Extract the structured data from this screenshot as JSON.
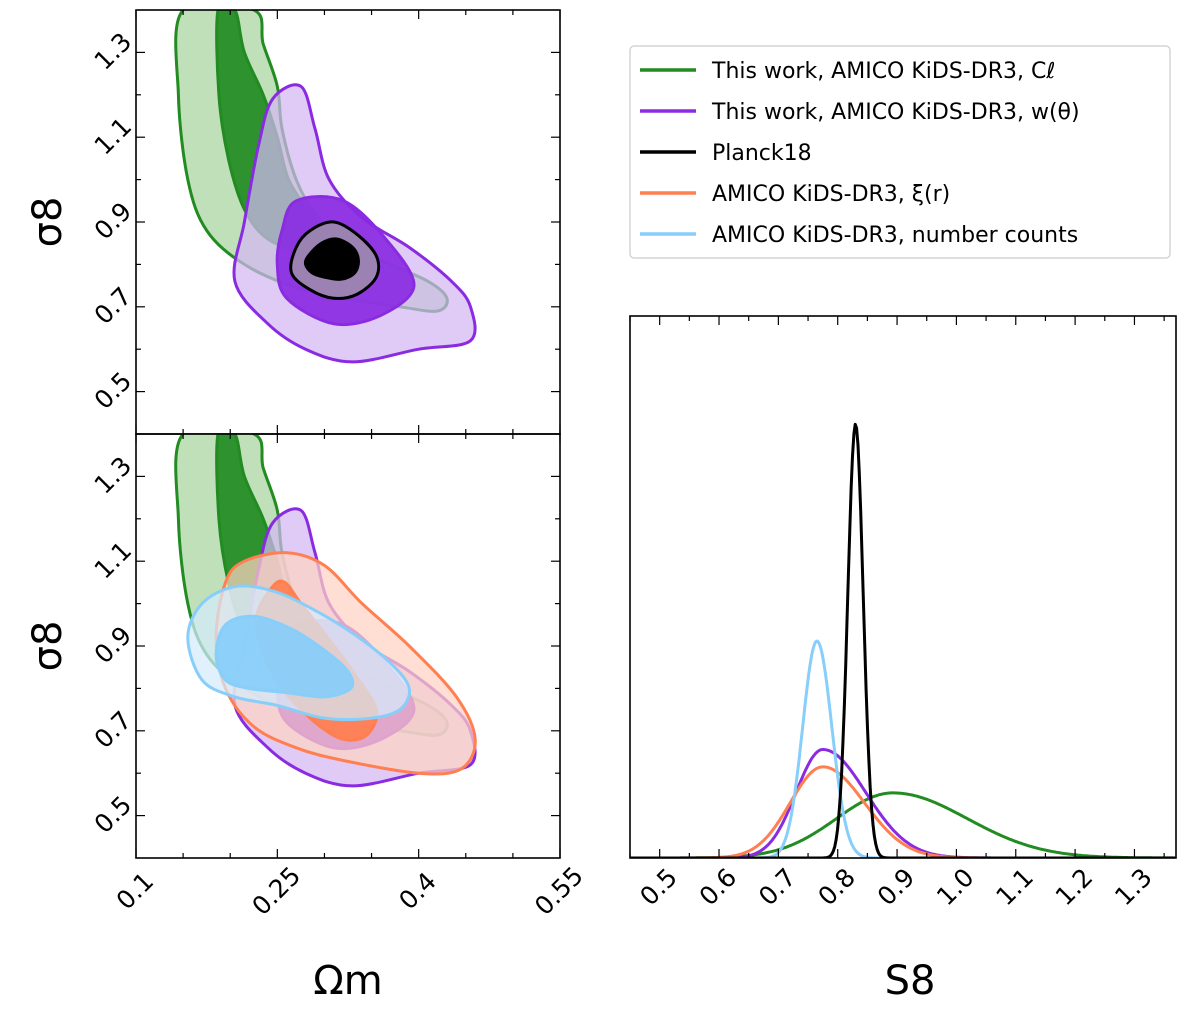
{
  "colors": {
    "green": "#228b22",
    "green_light": "#a8d4a0",
    "purple": "#8a2be2",
    "purple_light": "#d2b7f2",
    "black": "#000000",
    "grey": "#a0a0a0",
    "orange": "#ff7f50",
    "orange_light": "#ffd2c2",
    "blue": "#87cefa",
    "blue_light": "#d4ecfc"
  },
  "legend": {
    "green": "This work, AMICO KiDS-DR3, Cℓ",
    "purple": "This work, AMICO KiDS-DR3, w(θ)",
    "black": "Planck18",
    "orange": "AMICO KiDS-DR3, ξ(r)",
    "blue": "AMICO KiDS-DR3, number counts"
  },
  "chart_data": [
    {
      "type": "contour",
      "panel": "top-left",
      "xlabel": "Ωm",
      "ylabel": "σ8",
      "xlim": [
        0.1,
        0.55
      ],
      "ylim": [
        0.4,
        1.4
      ],
      "xticks": [],
      "yticks": [
        "0.5",
        "0.7",
        "0.9",
        "1.1",
        "1.3"
      ],
      "series": [
        {
          "name": "This work, AMICO KiDS-DR3, Cℓ",
          "color": "green",
          "outer": [
            [
              0.15,
              1.4
            ],
            [
              0.145,
              1.2
            ],
            [
              0.155,
              1.0
            ],
            [
              0.175,
              0.88
            ],
            [
              0.215,
              0.8
            ],
            [
              0.27,
              0.745
            ],
            [
              0.32,
              0.72
            ],
            [
              0.38,
              0.7
            ],
            [
              0.42,
              0.69
            ],
            [
              0.43,
              0.72
            ],
            [
              0.41,
              0.76
            ],
            [
              0.36,
              0.81
            ],
            [
              0.32,
              0.86
            ],
            [
              0.29,
              0.92
            ],
            [
              0.27,
              1.0
            ],
            [
              0.255,
              1.12
            ],
            [
              0.25,
              1.22
            ],
            [
              0.235,
              1.32
            ],
            [
              0.225,
              1.4
            ]
          ],
          "inner": [
            [
              0.187,
              1.4
            ],
            [
              0.188,
              1.2
            ],
            [
              0.198,
              1.05
            ],
            [
              0.215,
              0.93
            ],
            [
              0.24,
              0.86
            ],
            [
              0.28,
              0.83
            ],
            [
              0.305,
              0.86
            ],
            [
              0.285,
              0.92
            ],
            [
              0.262,
              1.0
            ],
            [
              0.25,
              1.1
            ],
            [
              0.235,
              1.2
            ],
            [
              0.215,
              1.3
            ],
            [
              0.205,
              1.4
            ]
          ]
        },
        {
          "name": "This work, AMICO KiDS-DR3, w(θ)",
          "color": "purple",
          "outer": [
            [
              0.23,
              1.08
            ],
            [
              0.245,
              1.19
            ],
            [
              0.275,
              1.22
            ],
            [
              0.29,
              1.12
            ],
            [
              0.305,
              1.0
            ],
            [
              0.34,
              0.91
            ],
            [
              0.39,
              0.84
            ],
            [
              0.435,
              0.76
            ],
            [
              0.455,
              0.7
            ],
            [
              0.455,
              0.62
            ],
            [
              0.4,
              0.6
            ],
            [
              0.33,
              0.57
            ],
            [
              0.28,
              0.6
            ],
            [
              0.24,
              0.66
            ],
            [
              0.205,
              0.76
            ],
            [
              0.215,
              0.9
            ]
          ],
          "inner": [
            [
              0.255,
              0.88
            ],
            [
              0.27,
              0.95
            ],
            [
              0.32,
              0.95
            ],
            [
              0.365,
              0.86
            ],
            [
              0.395,
              0.75
            ],
            [
              0.36,
              0.68
            ],
            [
              0.31,
              0.66
            ],
            [
              0.26,
              0.72
            ],
            [
              0.25,
              0.8
            ]
          ]
        },
        {
          "name": "Planck18",
          "color": "black",
          "outer": [
            [
              0.27,
              0.84
            ],
            [
              0.285,
              0.88
            ],
            [
              0.31,
              0.9
            ],
            [
              0.335,
              0.87
            ],
            [
              0.355,
              0.82
            ],
            [
              0.355,
              0.77
            ],
            [
              0.335,
              0.73
            ],
            [
              0.31,
              0.72
            ],
            [
              0.285,
              0.74
            ],
            [
              0.265,
              0.78
            ]
          ],
          "inner": [
            [
              0.283,
              0.82
            ],
            [
              0.297,
              0.85
            ],
            [
              0.313,
              0.86
            ],
            [
              0.33,
              0.84
            ],
            [
              0.336,
              0.81
            ],
            [
              0.332,
              0.78
            ],
            [
              0.318,
              0.765
            ],
            [
              0.3,
              0.77
            ],
            [
              0.287,
              0.78
            ],
            [
              0.28,
              0.8
            ]
          ]
        }
      ]
    },
    {
      "type": "contour",
      "panel": "bottom-left",
      "xlabel": "Ωm",
      "ylabel": "σ8",
      "xlim": [
        0.1,
        0.55
      ],
      "ylim": [
        0.4,
        1.4
      ],
      "xticks": [
        "0.1",
        "0.25",
        "0.4",
        "0.55"
      ],
      "yticks": [
        "0.5",
        "0.7",
        "0.9",
        "1.1",
        "1.3"
      ],
      "series": [
        {
          "name": "This work, AMICO KiDS-DR3, Cℓ",
          "color": "green",
          "outer": [
            [
              0.15,
              1.4
            ],
            [
              0.145,
              1.2
            ],
            [
              0.155,
              1.0
            ],
            [
              0.175,
              0.88
            ],
            [
              0.215,
              0.8
            ],
            [
              0.27,
              0.745
            ],
            [
              0.32,
              0.72
            ],
            [
              0.38,
              0.7
            ],
            [
              0.42,
              0.69
            ],
            [
              0.43,
              0.72
            ],
            [
              0.41,
              0.76
            ],
            [
              0.36,
              0.81
            ],
            [
              0.32,
              0.86
            ],
            [
              0.29,
              0.92
            ],
            [
              0.27,
              1.0
            ],
            [
              0.255,
              1.12
            ],
            [
              0.25,
              1.22
            ],
            [
              0.235,
              1.32
            ],
            [
              0.225,
              1.4
            ]
          ],
          "inner": [
            [
              0.187,
              1.4
            ],
            [
              0.188,
              1.2
            ],
            [
              0.198,
              1.05
            ],
            [
              0.215,
              0.93
            ],
            [
              0.24,
              0.86
            ],
            [
              0.28,
              0.83
            ],
            [
              0.305,
              0.86
            ],
            [
              0.285,
              0.92
            ],
            [
              0.262,
              1.0
            ],
            [
              0.25,
              1.1
            ],
            [
              0.235,
              1.2
            ],
            [
              0.215,
              1.3
            ],
            [
              0.205,
              1.4
            ]
          ]
        },
        {
          "name": "This work, AMICO KiDS-DR3, w(θ)",
          "color": "purple",
          "outer": [
            [
              0.23,
              1.08
            ],
            [
              0.245,
              1.19
            ],
            [
              0.275,
              1.22
            ],
            [
              0.29,
              1.12
            ],
            [
              0.305,
              1.0
            ],
            [
              0.34,
              0.91
            ],
            [
              0.39,
              0.84
            ],
            [
              0.435,
              0.76
            ],
            [
              0.455,
              0.7
            ],
            [
              0.455,
              0.62
            ],
            [
              0.4,
              0.6
            ],
            [
              0.33,
              0.57
            ],
            [
              0.28,
              0.6
            ],
            [
              0.24,
              0.66
            ],
            [
              0.205,
              0.76
            ],
            [
              0.215,
              0.9
            ]
          ],
          "inner": [
            [
              0.255,
              0.88
            ],
            [
              0.27,
              0.95
            ],
            [
              0.32,
              0.95
            ],
            [
              0.365,
              0.86
            ],
            [
              0.395,
              0.75
            ],
            [
              0.36,
              0.68
            ],
            [
              0.31,
              0.66
            ],
            [
              0.26,
              0.72
            ],
            [
              0.25,
              0.8
            ]
          ]
        },
        {
          "name": "AMICO KiDS-DR3, ξ(r)",
          "color": "orange",
          "outer": [
            [
              0.195,
              1.05
            ],
            [
              0.215,
              1.1
            ],
            [
              0.26,
              1.12
            ],
            [
              0.3,
              1.09
            ],
            [
              0.34,
              1.0
            ],
            [
              0.39,
              0.9
            ],
            [
              0.44,
              0.78
            ],
            [
              0.46,
              0.68
            ],
            [
              0.445,
              0.61
            ],
            [
              0.4,
              0.6
            ],
            [
              0.32,
              0.63
            ],
            [
              0.27,
              0.66
            ],
            [
              0.225,
              0.71
            ],
            [
              0.195,
              0.8
            ],
            [
              0.185,
              0.92
            ]
          ],
          "inner": [
            [
              0.228,
              0.97
            ],
            [
              0.245,
              1.04
            ],
            [
              0.258,
              1.05
            ],
            [
              0.275,
              1.0
            ],
            [
              0.3,
              0.93
            ],
            [
              0.33,
              0.84
            ],
            [
              0.355,
              0.75
            ],
            [
              0.345,
              0.69
            ],
            [
              0.32,
              0.68
            ],
            [
              0.29,
              0.72
            ],
            [
              0.255,
              0.8
            ],
            [
              0.235,
              0.88
            ]
          ]
        },
        {
          "name": "AMICO KiDS-DR3, number counts",
          "color": "blue",
          "outer": [
            [
              0.155,
              0.92
            ],
            [
              0.17,
              1.0
            ],
            [
              0.205,
              1.04
            ],
            [
              0.245,
              1.03
            ],
            [
              0.285,
              0.99
            ],
            [
              0.33,
              0.93
            ],
            [
              0.37,
              0.86
            ],
            [
              0.39,
              0.8
            ],
            [
              0.38,
              0.75
            ],
            [
              0.35,
              0.73
            ],
            [
              0.3,
              0.73
            ],
            [
              0.25,
              0.76
            ],
            [
              0.205,
              0.78
            ],
            [
              0.17,
              0.82
            ]
          ],
          "inner": [
            [
              0.185,
              0.88
            ],
            [
              0.195,
              0.95
            ],
            [
              0.225,
              0.97
            ],
            [
              0.265,
              0.94
            ],
            [
              0.3,
              0.89
            ],
            [
              0.325,
              0.84
            ],
            [
              0.328,
              0.8
            ],
            [
              0.3,
              0.78
            ],
            [
              0.26,
              0.79
            ],
            [
              0.22,
              0.8
            ],
            [
              0.195,
              0.82
            ]
          ]
        }
      ]
    },
    {
      "type": "line",
      "panel": "right",
      "xlabel": "S8",
      "xlim": [
        0.45,
        1.37
      ],
      "ylim": [
        0,
        1.0
      ],
      "xticks": [
        "0.5",
        "0.6",
        "0.7",
        "0.8",
        "0.9",
        "1.0",
        "1.1",
        "1.2",
        "1.3"
      ],
      "series": [
        {
          "name": "This work, AMICO KiDS-DR3, Cℓ",
          "color": "green",
          "kind": "skewgauss",
          "mu": 0.893,
          "sl": 0.095,
          "sr": 0.125,
          "amp": 0.15
        },
        {
          "name": "This work, AMICO KiDS-DR3, w(θ)",
          "color": "purple",
          "kind": "skewgauss",
          "mu": 0.775,
          "sl": 0.045,
          "sr": 0.072,
          "amp": 0.25
        },
        {
          "name": "Planck18",
          "color": "black",
          "kind": "skewgauss",
          "mu": 0.83,
          "sl": 0.013,
          "sr": 0.013,
          "amp": 1.0
        },
        {
          "name": "AMICO KiDS-DR3, ξ(r)",
          "color": "orange",
          "kind": "skewgauss",
          "mu": 0.775,
          "sl": 0.055,
          "sr": 0.07,
          "amp": 0.21
        },
        {
          "name": "AMICO KiDS-DR3, number counts",
          "color": "blue",
          "kind": "skewgauss",
          "mu": 0.765,
          "sl": 0.024,
          "sr": 0.025,
          "amp": 0.5
        }
      ]
    }
  ]
}
